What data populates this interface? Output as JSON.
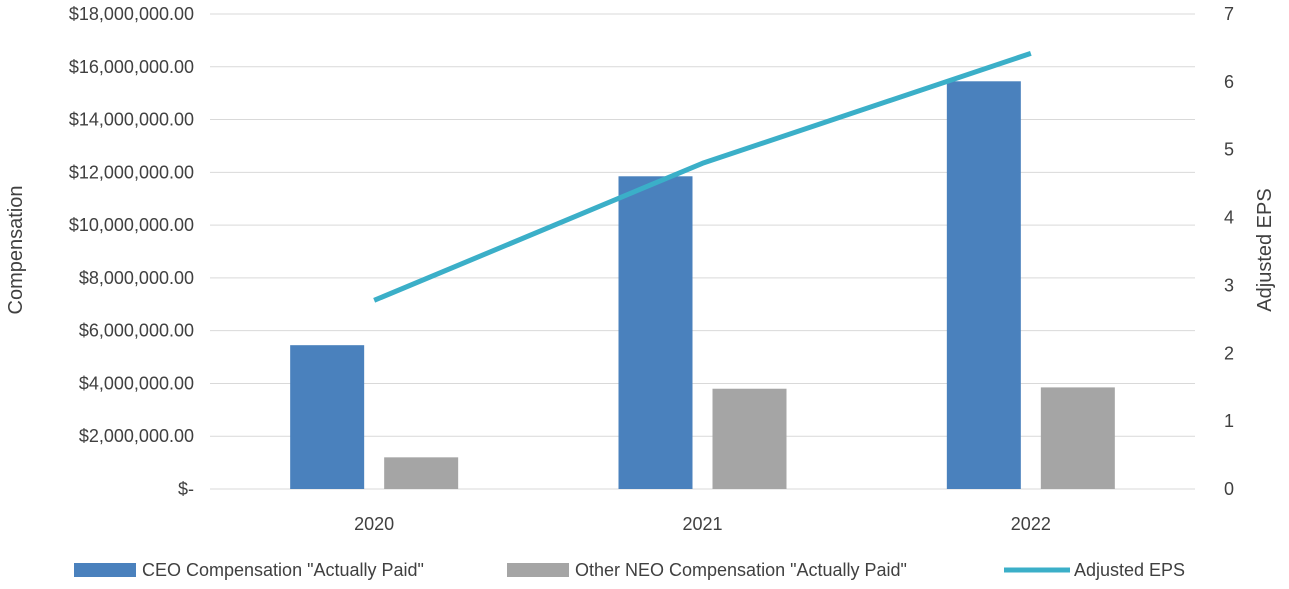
{
  "chart_data": {
    "type": "bar",
    "categories": [
      "2020",
      "2021",
      "2022"
    ],
    "series": [
      {
        "name": "CEO Compensation \"Actually Paid\"",
        "type": "bar",
        "axis": "left",
        "color": "#4a81bd",
        "values": [
          5450000,
          11850000,
          15450000
        ]
      },
      {
        "name": "Other NEO Compensation \"Actually Paid\"",
        "type": "bar",
        "axis": "left",
        "color": "#a5a5a5",
        "values": [
          1200000,
          3800000,
          3850000
        ]
      },
      {
        "name": "Adjusted EPS",
        "type": "line",
        "axis": "right",
        "color": "#3bafc8",
        "values": [
          2.78,
          4.8,
          6.42
        ]
      }
    ],
    "ylabel": "Compensation",
    "y2label": "Adjusted EPS",
    "ylim": [
      0,
      18000000
    ],
    "y2lim": [
      0,
      7
    ],
    "yticks": [
      "$-",
      "$2,000,000.00",
      "$4,000,000.00",
      "$6,000,000.00",
      "$8,000,000.00",
      "$10,000,000.00",
      "$12,000,000.00",
      "$14,000,000.00",
      "$16,000,000.00",
      "$18,000,000.00"
    ],
    "y2ticks": [
      "0",
      "1",
      "2",
      "3",
      "4",
      "5",
      "6",
      "7"
    ],
    "grid": true,
    "legend_position": "bottom"
  }
}
